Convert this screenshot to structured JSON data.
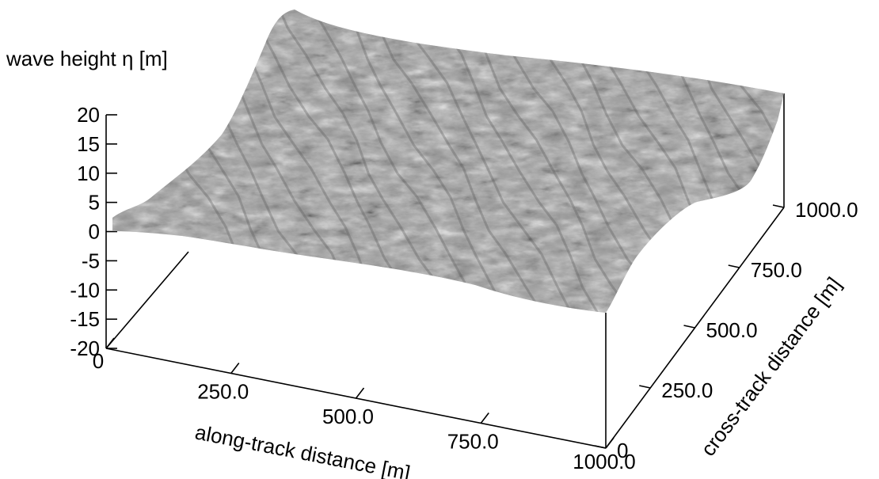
{
  "chart_data": {
    "type": "surface",
    "title": "",
    "zlabel": "wave height η [m]",
    "xlabel": "along-track distance [m]",
    "ylabel": "cross-track distance [m]",
    "x_range": [
      0,
      1000
    ],
    "y_range": [
      0,
      1000
    ],
    "z_range": [
      -20,
      20
    ],
    "x_ticks": [
      "0",
      "250.0",
      "500.0",
      "750.0",
      "1000.0"
    ],
    "y_ticks": [
      "0",
      "250.0",
      "500.0",
      "750.0",
      "1000.0"
    ],
    "z_ticks": [
      "20",
      "15",
      "10",
      "5",
      "0",
      "-5",
      "-10",
      "-15",
      "-20"
    ],
    "surface_color": "#9a9a9a",
    "grid": false
  }
}
